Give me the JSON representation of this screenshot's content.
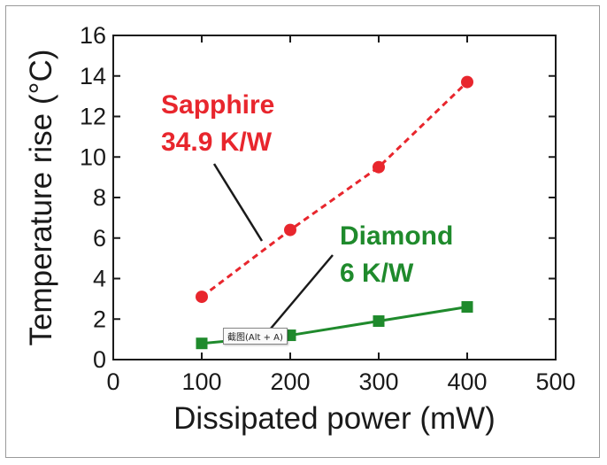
{
  "chart_data": {
    "type": "line",
    "xlabel": "Dissipated power (mW)",
    "ylabel": "Temperature rise (°C)",
    "xlim": [
      0,
      500
    ],
    "ylim": [
      0,
      16
    ],
    "xticks": [
      0,
      100,
      200,
      300,
      400,
      500
    ],
    "yticks": [
      0,
      2,
      4,
      6,
      8,
      10,
      12,
      14,
      16
    ],
    "grid": false,
    "series": [
      {
        "name": "Sapphire",
        "color": "#e8262d",
        "marker": "circle",
        "line_style": "dashed",
        "x": [
          100,
          200,
          300,
          400
        ],
        "y": [
          3.1,
          6.4,
          9.5,
          13.7
        ]
      },
      {
        "name": "Diamond",
        "color": "#1f8a2c",
        "marker": "square",
        "line_style": "solid",
        "x": [
          100,
          200,
          300,
          400
        ],
        "y": [
          0.8,
          1.2,
          1.9,
          2.6
        ]
      }
    ],
    "annotations": [
      {
        "series": "Sapphire",
        "line1": "Sapphire",
        "line2": "34.9 K/W",
        "color": "#e8262d"
      },
      {
        "series": "Diamond",
        "line1": "Diamond",
        "line2": "6 K/W",
        "color": "#1f8a2c"
      }
    ]
  },
  "tooltip": {
    "text": "截图(Alt + A)"
  }
}
